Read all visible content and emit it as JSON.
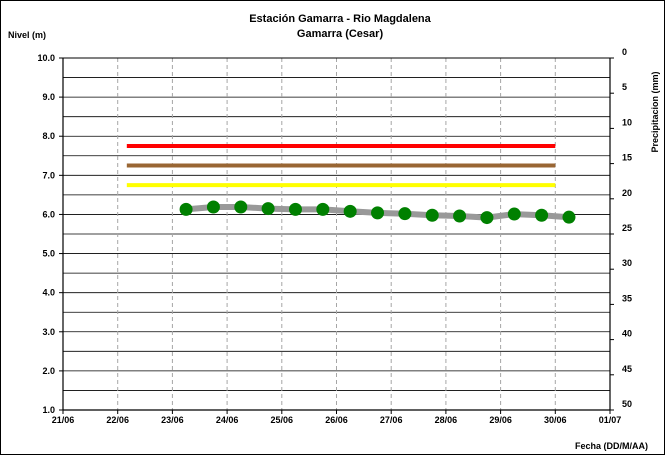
{
  "chart_data": {
    "type": "line",
    "title": "Estación Gamarra - Rio Magdalena",
    "subtitle": "Gamarra (Cesar)",
    "ylabel": "Nivel (m)",
    "y2label": "Precipitacion (mm)",
    "xlabel": "Fecha (DD/M/AA)",
    "x_ticks": [
      "21/06",
      "22/06",
      "23/06",
      "24/06",
      "25/06",
      "26/06",
      "27/06",
      "28/06",
      "29/06",
      "30/06",
      "01/07"
    ],
    "y_ticks": [
      "1.0",
      "2.0",
      "3.0",
      "4.0",
      "5.0",
      "6.0",
      "7.0",
      "8.0",
      "9.0",
      "10.0"
    ],
    "y2_ticks": [
      "0",
      "5",
      "10",
      "15",
      "20",
      "25",
      "30",
      "35",
      "40",
      "45",
      "50"
    ],
    "ylim": [
      1.0,
      10.0
    ],
    "y2lim": [
      50,
      0
    ],
    "y2_reversed": true,
    "grid": true,
    "threshold_lines": [
      {
        "value": 7.75,
        "x_start": "22/06 04:00",
        "x_end": "30/06 00:00",
        "color": "#ff0000"
      },
      {
        "value": 7.25,
        "x_start": "22/06 04:00",
        "x_end": "30/06 00:00",
        "color": "#996633"
      },
      {
        "value": 6.75,
        "x_start": "22/06 04:00",
        "x_end": "30/06 00:00",
        "color": "#ffff00"
      }
    ],
    "series": [
      {
        "x": [
          "23/06 06:00",
          "23/06 18:00",
          "24/06 06:00",
          "24/06 18:00",
          "25/06 06:00",
          "25/06 18:00",
          "26/06 06:00",
          "26/06 18:00",
          "27/06 06:00",
          "27/06 18:00",
          "28/06 06:00",
          "28/06 18:00",
          "29/06 06:00",
          "29/06 18:00",
          "30/06 06:00"
        ],
        "values": [
          6.13,
          6.19,
          6.19,
          6.15,
          6.13,
          6.13,
          6.08,
          6.04,
          6.02,
          5.98,
          5.96,
          5.92,
          6.01,
          5.98,
          5.93
        ],
        "line_color": "#999999",
        "marker_color": "#008000"
      }
    ]
  }
}
